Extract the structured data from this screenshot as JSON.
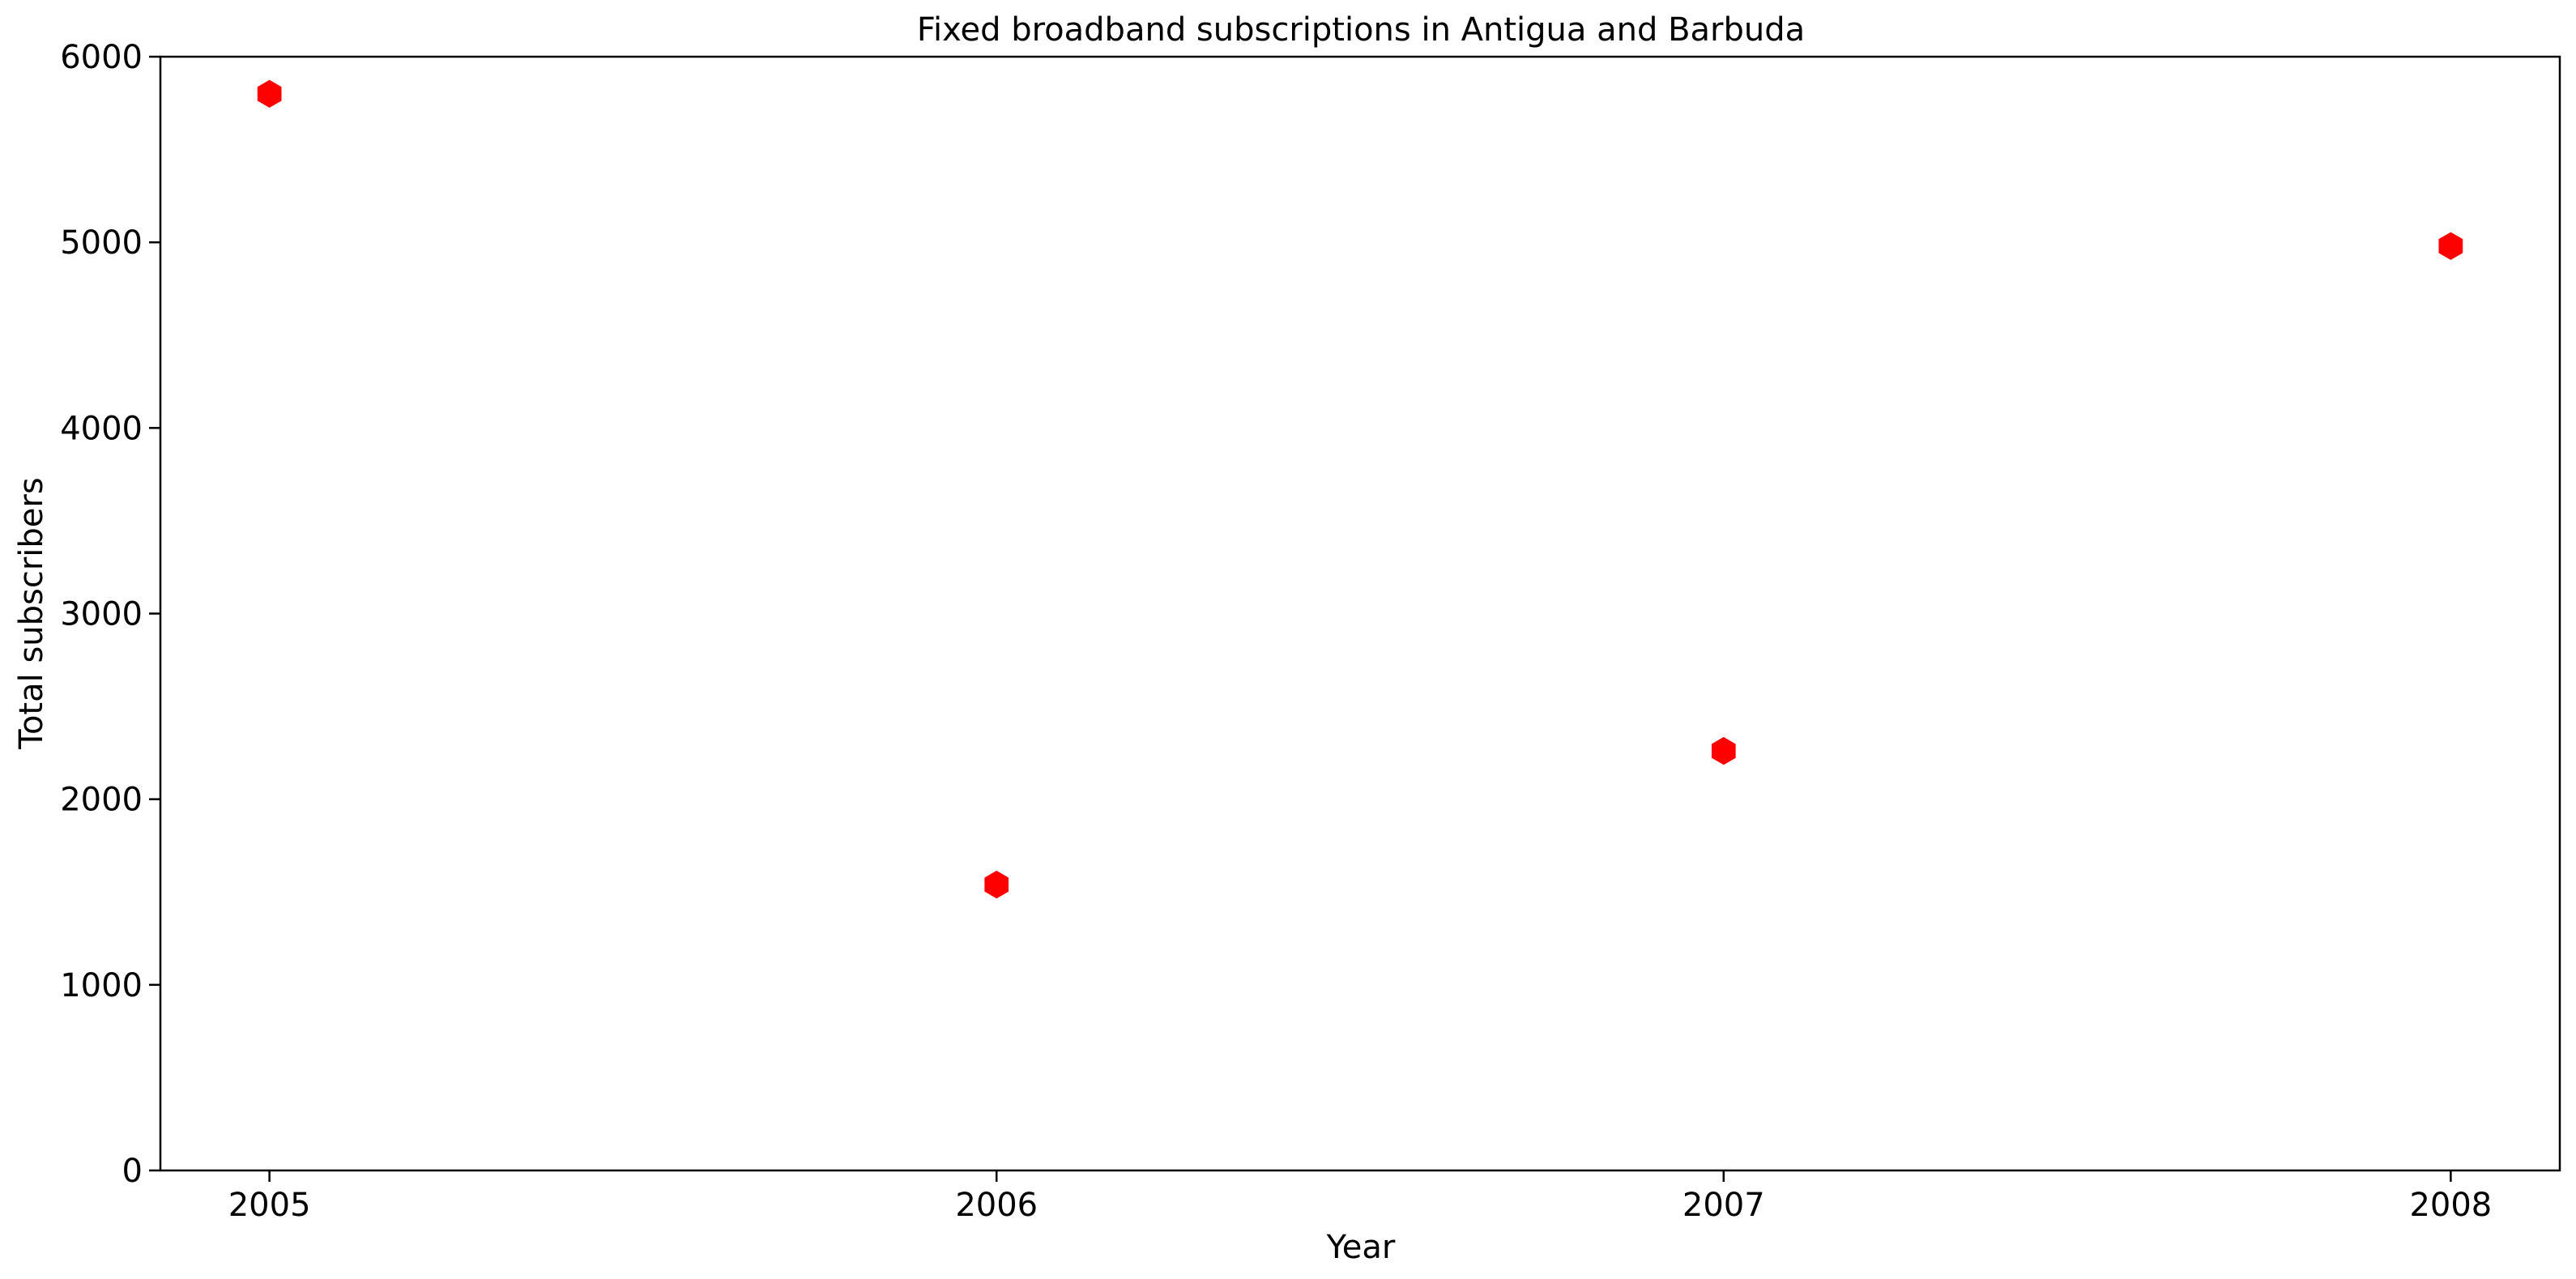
{
  "chart_data": {
    "type": "scatter",
    "title": "Fixed broadband subscriptions in Antigua and Barbuda",
    "xlabel": "Year",
    "ylabel": "Total subscribers",
    "x": [
      2005,
      2006,
      2007,
      2008
    ],
    "series": [
      {
        "values": [
          5800,
          1540,
          2260,
          4980
        ],
        "color": "#ff0000",
        "marker": "hexagon"
      }
    ],
    "xticks": [
      "2005",
      "2006",
      "2007",
      "2008"
    ],
    "yticks": [
      "0",
      "1000",
      "2000",
      "3000",
      "4000",
      "5000",
      "6000"
    ],
    "xlim": [
      2004.85,
      2008.15
    ],
    "ylim": [
      0,
      6000
    ],
    "grid": false,
    "legend": "none"
  }
}
